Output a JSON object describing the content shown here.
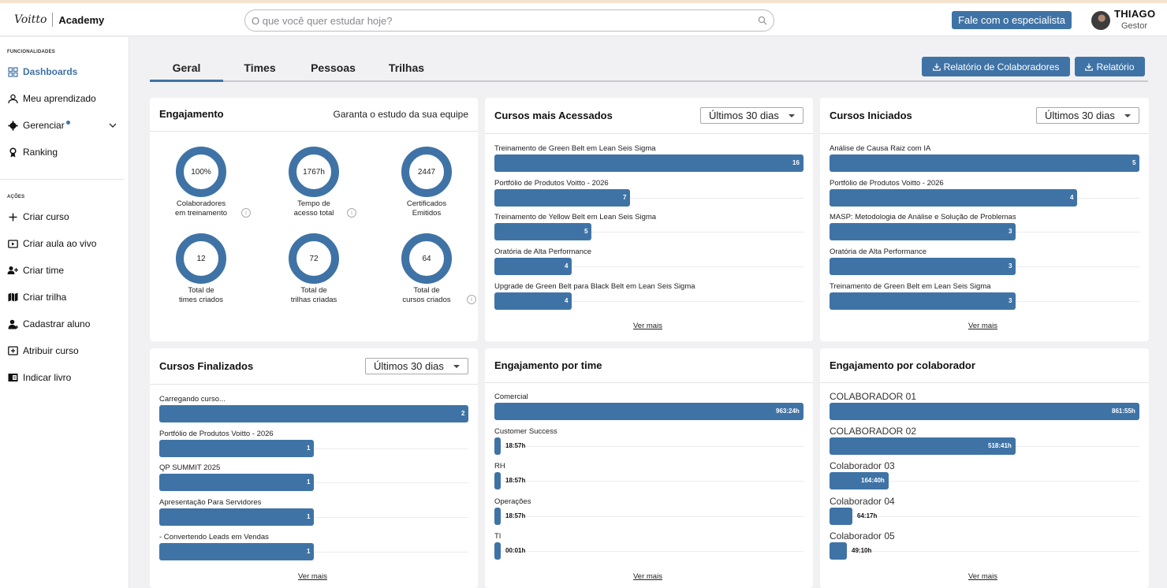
{
  "header": {
    "logo_mark": "Voitto",
    "logo_text": "Academy",
    "search_placeholder": "O que você quer estudar hoje?",
    "cta_label": "Fale com o especialista",
    "user_name": "THIAGO",
    "user_role": "Gestor"
  },
  "sidebar": {
    "section_features": "FUNCIONALIDADES",
    "section_actions": "AÇÕES",
    "items": [
      {
        "label": "Dashboards",
        "icon": "dashboard-icon"
      },
      {
        "label": "Meu aprendizado",
        "icon": "learning-icon"
      },
      {
        "label": "Gerenciar",
        "icon": "gear-icon"
      },
      {
        "label": "Ranking",
        "icon": "trophy-icon"
      }
    ],
    "actions": [
      {
        "label": "Criar curso",
        "icon": "plus-icon"
      },
      {
        "label": "Criar aula ao vivo",
        "icon": "live-class-icon"
      },
      {
        "label": "Criar time",
        "icon": "add-team-icon"
      },
      {
        "label": "Criar trilha",
        "icon": "map-icon"
      },
      {
        "label": "Cadastrar aluno",
        "icon": "add-student-icon"
      },
      {
        "label": "Atribuir curso",
        "icon": "assign-course-icon"
      },
      {
        "label": "Indicar livro",
        "icon": "book-icon"
      }
    ]
  },
  "tabs": [
    "Geral",
    "Times",
    "Pessoas",
    "Trilhas"
  ],
  "active_tab": "Geral",
  "report_buttons": {
    "collaborators": "Relatório de Colaboradores",
    "report": "Relatório"
  },
  "engagement": {
    "title": "Engajamento",
    "subtitle": "Garanta o estudo da sua equipe",
    "stats": [
      {
        "value": "100%",
        "label_1": "Colaboradores",
        "label_2": "em treinamento"
      },
      {
        "value": "1767h",
        "label_1": "Tempo de",
        "label_2": "acesso total"
      },
      {
        "value": "2447",
        "label_1": "Certificados",
        "label_2": "Emitidos"
      },
      {
        "value": "12",
        "label_1": "Total de",
        "label_2": "times criados"
      },
      {
        "value": "72",
        "label_1": "Total de",
        "label_2": "trilhas criadas"
      },
      {
        "value": "64",
        "label_1": "Total de",
        "label_2": "cursos criados"
      }
    ]
  },
  "most_accessed": {
    "title": "Cursos mais Acessados",
    "period": "Últimos 30 dias",
    "more": "Ver mais",
    "items": [
      {
        "label": "Treinamento de Green Belt em Lean Seis Sigma",
        "value": 16,
        "display": "16"
      },
      {
        "label": "Portfólio de Produtos Voitto - 2026",
        "value": 7,
        "display": "7"
      },
      {
        "label": "Treinamento de Yellow Belt em Lean Seis Sigma",
        "value": 5,
        "display": "5"
      },
      {
        "label": "Oratória de Alta Performance",
        "value": 4,
        "display": "4"
      },
      {
        "label": "Upgrade de Green Belt para Black Belt em Lean Seis Sigma",
        "value": 4,
        "display": "4"
      }
    ]
  },
  "started": {
    "title": "Cursos Iniciados",
    "period": "Últimos 30 dias",
    "more": "Ver mais",
    "items": [
      {
        "label": "Análise de Causa Raiz com IA",
        "value": 5,
        "display": "5"
      },
      {
        "label": "Portfólio de Produtos Voitto - 2026",
        "value": 4,
        "display": "4"
      },
      {
        "label": "MASP: Metodologia de Análise e Solução de Problemas",
        "value": 3,
        "display": "3"
      },
      {
        "label": "Oratória de Alta Performance",
        "value": 3,
        "display": "3"
      },
      {
        "label": "Treinamento de Green Belt em Lean Seis Sigma",
        "value": 3,
        "display": "3"
      }
    ]
  },
  "finished": {
    "title": "Cursos Finalizados",
    "period": "Últimos 30 dias",
    "more": "Ver mais",
    "items": [
      {
        "label": "Carregando curso...",
        "value": 2,
        "display": "2"
      },
      {
        "label": "Portfólio de Produtos Voitto - 2026",
        "value": 1,
        "display": "1"
      },
      {
        "label": "QP SUMMIT 2025",
        "value": 1,
        "display": "1"
      },
      {
        "label": "Apresentação Para Servidores",
        "value": 1,
        "display": "1"
      },
      {
        "label": "- Convertendo Leads em Vendas",
        "value": 1,
        "display": "1"
      }
    ]
  },
  "team_engagement": {
    "title": "Engajamento por time",
    "more": "Ver mais",
    "items": [
      {
        "label": "Comercial",
        "value": 963.4,
        "display": "963:24h"
      },
      {
        "label": "Customer Success",
        "value": 18.95,
        "display": "18:57h"
      },
      {
        "label": "RH",
        "value": 18.95,
        "display": "18:57h"
      },
      {
        "label": "Operações",
        "value": 18.95,
        "display": "18:57h"
      },
      {
        "label": "TI",
        "value": 0.02,
        "display": "00:01h"
      }
    ]
  },
  "collaborator_engagement": {
    "title": "Engajamento por colaborador",
    "more": "Ver mais",
    "items": [
      {
        "label": "COLABORADOR 01",
        "value": 861.92,
        "display": "861:55h"
      },
      {
        "label": "COLABORADOR 02",
        "value": 518.68,
        "display": "518:41h"
      },
      {
        "label": "Colaborador 03",
        "value": 164.67,
        "display": "164:40h"
      },
      {
        "label": "Colaborador 04",
        "value": 64.28,
        "display": "64:17h"
      },
      {
        "label": "Colaborador 05",
        "value": 49.17,
        "display": "49:10h"
      }
    ]
  },
  "colors": {
    "accent": "#3f73a6",
    "background": "#f1f1f3"
  }
}
